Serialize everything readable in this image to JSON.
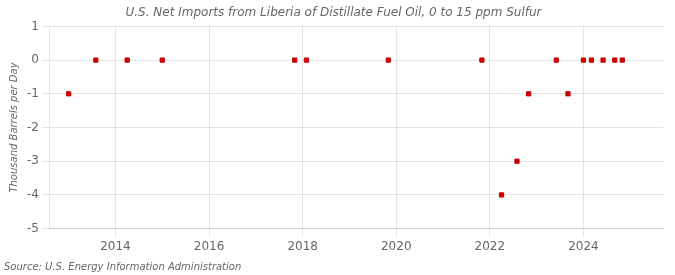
{
  "chart_data": {
    "type": "scatter",
    "title": "U.S. Net Imports from Liberia of Distillate Fuel Oil, 0 to 15 ppm Sulfur",
    "ylabel": "Thousand Barrels per Day",
    "annotations": [
      "Source: U.S. Energy Information Administration"
    ],
    "x": [
      2013.0,
      2013.58,
      2014.25,
      2015.0,
      2017.83,
      2018.08,
      2019.83,
      2021.83,
      2022.25,
      2022.58,
      2022.83,
      2023.42,
      2023.67,
      2024.0,
      2024.17,
      2024.42,
      2024.67,
      2024.83
    ],
    "values": [
      -1.0,
      0.0,
      0.0,
      0.0,
      0.0,
      0.0,
      0.0,
      0.0,
      -4.0,
      -3.0,
      -1.0,
      0.0,
      -1.0,
      0.0,
      0.0,
      0.0,
      0.0,
      0.0
    ],
    "color": "#cc0000",
    "marker": "square",
    "xlim": [
      2012.6,
      2025.7
    ],
    "xticks": [
      2014,
      2016,
      2018,
      2020,
      2022,
      2024
    ],
    "ylim": [
      -5.0,
      1.0
    ],
    "yticks": [
      1.0,
      0.0,
      -1.0,
      -2.0,
      -3.0,
      -4.0,
      -5.0
    ],
    "grid": true
  }
}
